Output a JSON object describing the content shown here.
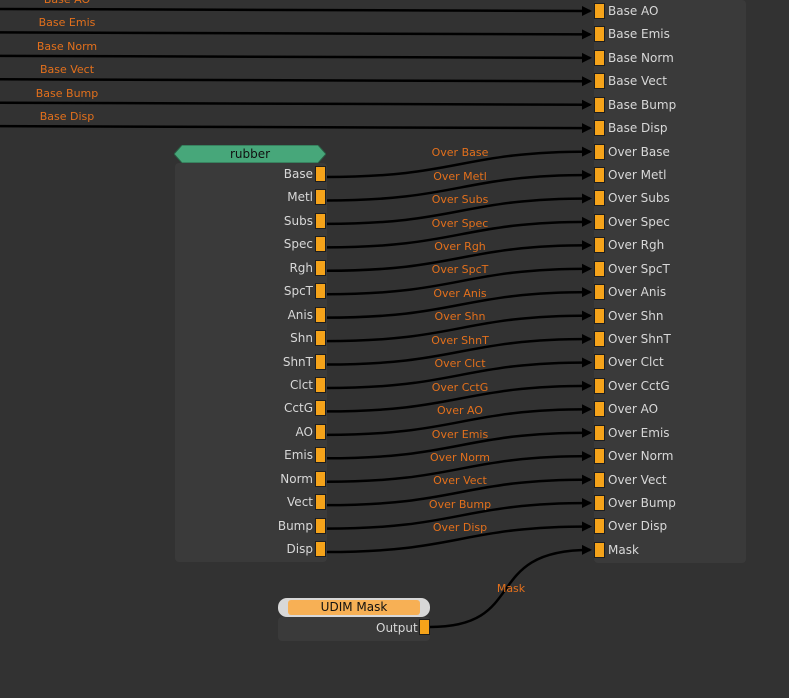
{
  "colors": {
    "background": "#323232",
    "panel": "#3a3a3a",
    "port": "#f5a31a",
    "wire": "#000000",
    "wire_label": "#e3701c",
    "rubber_header": "#47a77a",
    "udim_header": "#f7b055"
  },
  "target_node": {
    "inputs": [
      "Base AO",
      "Base Emis",
      "Base Norm",
      "Base Vect",
      "Base Bump",
      "Base Disp",
      "Over Base",
      "Over Metl",
      "Over Subs",
      "Over Spec",
      "Over Rgh",
      "Over SpcT",
      "Over Anis",
      "Over Shn",
      "Over ShnT",
      "Over Clct",
      "Over CctG",
      "Over AO",
      "Over Emis",
      "Over Norm",
      "Over Vect",
      "Over Bump",
      "Over Disp",
      "Mask"
    ]
  },
  "incoming_wires": {
    "labels": [
      "Base AO",
      "Base Emis",
      "Base Norm",
      "Base Vect",
      "Base Bump",
      "Base Disp"
    ]
  },
  "rubber_node": {
    "title": "rubber",
    "outputs": [
      "Base",
      "Metl",
      "Subs",
      "Spec",
      "Rgh",
      "SpcT",
      "Anis",
      "Shn",
      "ShnT",
      "Clct",
      "CctG",
      "AO",
      "Emis",
      "Norm",
      "Vect",
      "Bump",
      "Disp"
    ]
  },
  "rubber_wires": {
    "labels": [
      "Over Base",
      "Over Metl",
      "Over Subs",
      "Over Spec",
      "Over Rgh",
      "Over SpcT",
      "Over Anis",
      "Over Shn",
      "Over ShnT",
      "Over Clct",
      "Over CctG",
      "Over AO",
      "Over Emis",
      "Over Norm",
      "Over Vect",
      "Over Bump",
      "Over Disp"
    ]
  },
  "udim_node": {
    "title": "UDIM Mask",
    "output": "Output",
    "wire_label": "Mask"
  }
}
